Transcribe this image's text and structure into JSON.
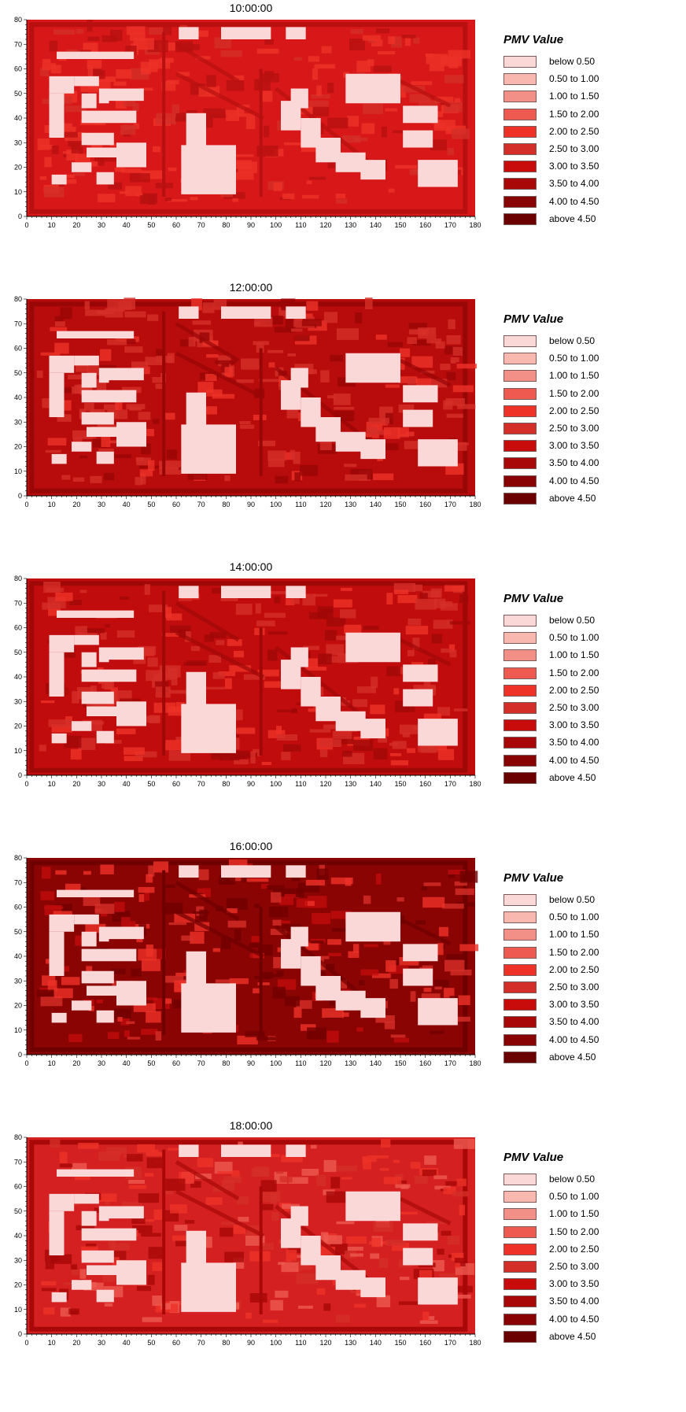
{
  "legend": {
    "title": "PMV Value",
    "items": [
      {
        "label": "below 0.50",
        "color": "#fbd8d8"
      },
      {
        "label": "0.50 to 1.00",
        "color": "#f8b8b0"
      },
      {
        "label": "1.00 to 1.50",
        "color": "#f29088"
      },
      {
        "label": "1.50 to 2.00",
        "color": "#ee5a50"
      },
      {
        "label": "2.00 to 2.50",
        "color": "#ee3228"
      },
      {
        "label": "2.50 to 3.00",
        "color": "#d42e28"
      },
      {
        "label": "3.00 to 3.50",
        "color": "#c80c0c"
      },
      {
        "label": "3.50 to 4.00",
        "color": "#a80808"
      },
      {
        "label": "4.00 to 4.50",
        "color": "#880404"
      },
      {
        "label": "above 4.50",
        "color": "#6a0000"
      }
    ]
  },
  "axes": {
    "x_ticks": [
      "0",
      "10",
      "20",
      "30",
      "40",
      "50",
      "60",
      "70",
      "80",
      "90",
      "100",
      "110",
      "120",
      "130",
      "140",
      "150",
      "160",
      "170",
      "180"
    ],
    "y_ticks": [
      "0",
      "10",
      "20",
      "30",
      "40",
      "50",
      "60",
      "70",
      "80"
    ]
  },
  "panels": [
    {
      "time": "10:00:00",
      "background_color": "#d81818",
      "mid_color": "#ee3228",
      "dark_color": "#b81010"
    },
    {
      "time": "12:00:00",
      "background_color": "#b80c0c",
      "mid_color": "#d42e28",
      "dark_color": "#980606"
    },
    {
      "time": "14:00:00",
      "background_color": "#c00c0c",
      "mid_color": "#d42e28",
      "dark_color": "#a00808"
    },
    {
      "time": "16:00:00",
      "background_color": "#8a0404",
      "mid_color": "#c00c0c",
      "dark_color": "#700000"
    },
    {
      "time": "18:00:00",
      "background_color": "#d42020",
      "mid_color": "#ee5a50",
      "dark_color": "#a80808"
    }
  ],
  "buildings": [
    {
      "x": 12,
      "y": 64,
      "w": 31,
      "h": 3
    },
    {
      "x": 61,
      "y": 72,
      "w": 8,
      "h": 5
    },
    {
      "x": 78,
      "y": 72,
      "w": 20,
      "h": 5
    },
    {
      "x": 104,
      "y": 72,
      "w": 8,
      "h": 5
    },
    {
      "x": 9,
      "y": 50,
      "w": 10,
      "h": 7
    },
    {
      "x": 19,
      "y": 53,
      "w": 10,
      "h": 4
    },
    {
      "x": 9,
      "y": 32,
      "w": 6,
      "h": 18
    },
    {
      "x": 22,
      "y": 44,
      "w": 6,
      "h": 6
    },
    {
      "x": 29,
      "y": 46,
      "w": 4,
      "h": 6
    },
    {
      "x": 33,
      "y": 47,
      "w": 14,
      "h": 5
    },
    {
      "x": 22,
      "y": 38,
      "w": 22,
      "h": 5
    },
    {
      "x": 22,
      "y": 29,
      "w": 13,
      "h": 5
    },
    {
      "x": 24,
      "y": 24,
      "w": 12,
      "h": 4
    },
    {
      "x": 36,
      "y": 20,
      "w": 12,
      "h": 10
    },
    {
      "x": 18,
      "y": 18,
      "w": 8,
      "h": 4
    },
    {
      "x": 28,
      "y": 13,
      "w": 7,
      "h": 5
    },
    {
      "x": 10,
      "y": 13,
      "w": 6,
      "h": 4
    },
    {
      "x": 62,
      "y": 9,
      "w": 22,
      "h": 20
    },
    {
      "x": 64,
      "y": 28,
      "w": 8,
      "h": 14
    },
    {
      "x": 128,
      "y": 46,
      "w": 22,
      "h": 12
    },
    {
      "x": 151,
      "y": 38,
      "w": 14,
      "h": 7
    },
    {
      "x": 151,
      "y": 28,
      "w": 12,
      "h": 7
    },
    {
      "x": 157,
      "y": 12,
      "w": 16,
      "h": 11
    },
    {
      "x": 102,
      "y": 35,
      "w": 8,
      "h": 12
    },
    {
      "x": 106,
      "y": 44,
      "w": 7,
      "h": 8
    },
    {
      "x": 110,
      "y": 28,
      "w": 8,
      "h": 12
    },
    {
      "x": 116,
      "y": 22,
      "w": 10,
      "h": 10
    },
    {
      "x": 124,
      "y": 18,
      "w": 12,
      "h": 8
    },
    {
      "x": 134,
      "y": 15,
      "w": 10,
      "h": 8
    }
  ]
}
